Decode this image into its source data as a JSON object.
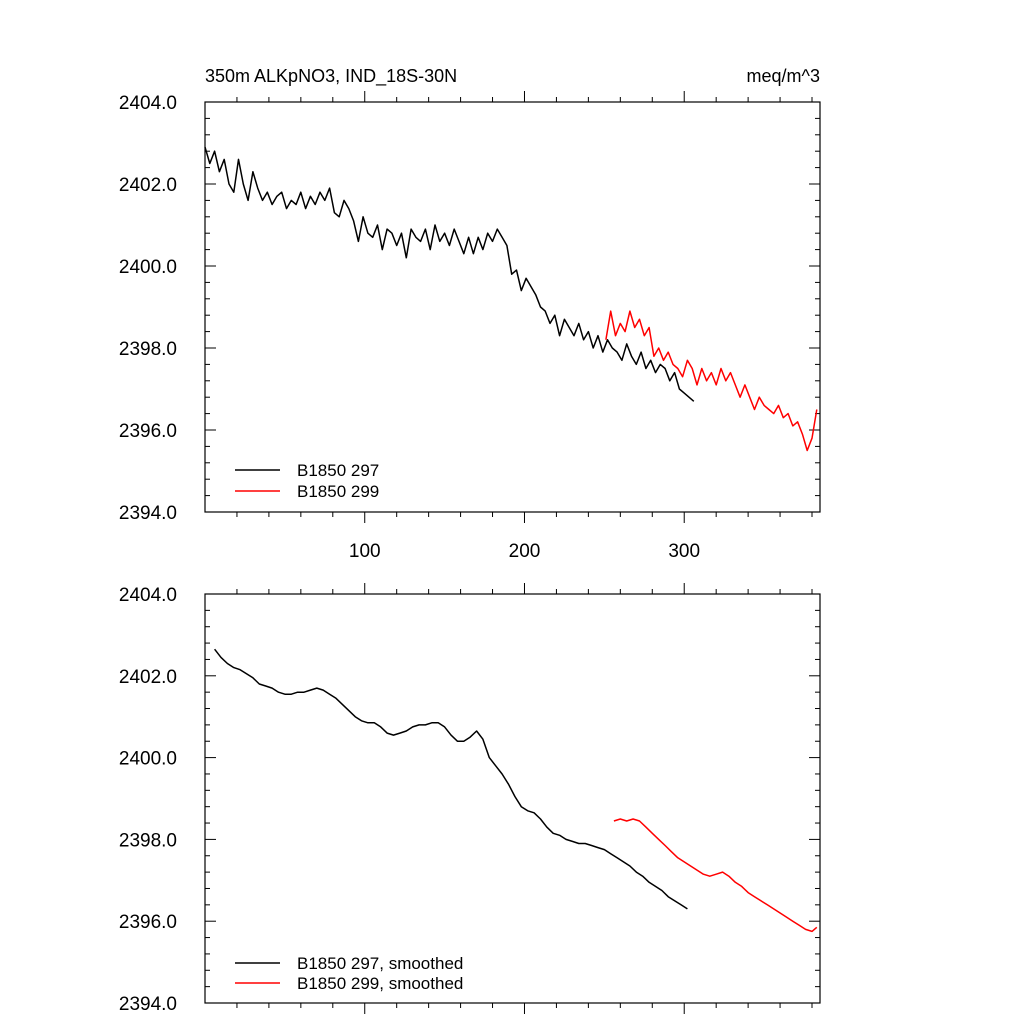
{
  "chart_data": [
    {
      "type": "line",
      "title": "350m ALKpNO3, IND_18S-30N",
      "units": "meq/m^3",
      "xlabel": "",
      "ylabel": "",
      "xlim": [
        0,
        385
      ],
      "ylim": [
        2394,
        2404
      ],
      "xticks": [
        100,
        200,
        300
      ],
      "xtick_labels": [
        "100",
        "200",
        "300"
      ],
      "yticks": [
        2394,
        2396,
        2398,
        2400,
        2402,
        2404
      ],
      "ytick_labels": [
        "2394.0",
        "2396.0",
        "2398.0",
        "2400.0",
        "2402.0",
        "2404.0"
      ],
      "legend": "bottom-left",
      "series": [
        {
          "name": "B1850 297",
          "color": "#000000",
          "x": [
            0,
            3,
            6,
            9,
            12,
            15,
            18,
            21,
            24,
            27,
            30,
            33,
            36,
            39,
            42,
            45,
            48,
            51,
            54,
            57,
            60,
            63,
            66,
            69,
            72,
            75,
            78,
            81,
            84,
            87,
            90,
            93,
            96,
            99,
            102,
            105,
            108,
            111,
            114,
            117,
            120,
            123,
            126,
            129,
            132,
            135,
            138,
            141,
            144,
            147,
            150,
            153,
            156,
            159,
            162,
            165,
            168,
            171,
            174,
            177,
            180,
            183,
            186,
            189,
            192,
            195,
            198,
            201,
            204,
            207,
            210,
            213,
            216,
            219,
            222,
            225,
            228,
            231,
            234,
            237,
            240,
            243,
            246,
            249,
            252,
            255,
            258,
            261,
            264,
            267,
            270,
            273,
            276,
            279,
            282,
            285,
            288,
            291,
            294,
            297,
            300,
            303,
            306
          ],
          "y": [
            2402.9,
            2402.5,
            2402.8,
            2402.3,
            2402.6,
            2402.0,
            2401.8,
            2402.6,
            2402.0,
            2401.6,
            2402.3,
            2401.9,
            2401.6,
            2401.8,
            2401.5,
            2401.7,
            2401.8,
            2401.4,
            2401.6,
            2401.5,
            2401.8,
            2401.4,
            2401.7,
            2401.5,
            2401.8,
            2401.6,
            2401.9,
            2401.3,
            2401.2,
            2401.6,
            2401.4,
            2401.1,
            2400.6,
            2401.2,
            2400.8,
            2400.7,
            2401.0,
            2400.4,
            2400.9,
            2400.8,
            2400.5,
            2400.8,
            2400.2,
            2400.9,
            2400.7,
            2400.6,
            2400.9,
            2400.4,
            2401.0,
            2400.6,
            2400.8,
            2400.5,
            2400.9,
            2400.6,
            2400.3,
            2400.7,
            2400.3,
            2400.7,
            2400.4,
            2400.8,
            2400.6,
            2400.9,
            2400.7,
            2400.5,
            2399.8,
            2399.9,
            2399.4,
            2399.7,
            2399.5,
            2399.3,
            2399.0,
            2398.9,
            2398.6,
            2398.8,
            2398.3,
            2398.7,
            2398.5,
            2398.3,
            2398.6,
            2398.2,
            2398.4,
            2398.0,
            2398.3,
            2397.9,
            2398.2,
            2398.0,
            2397.9,
            2397.7,
            2398.1,
            2397.8,
            2397.6,
            2397.9,
            2397.5,
            2397.7,
            2397.4,
            2397.6,
            2397.5,
            2397.2,
            2397.4,
            2397.0,
            2396.9,
            2396.8,
            2396.7
          ]
        },
        {
          "name": "B1850 299",
          "color": "#ff0000",
          "x": [
            251,
            254,
            257,
            260,
            263,
            266,
            269,
            272,
            275,
            278,
            281,
            284,
            287,
            290,
            293,
            296,
            299,
            302,
            305,
            308,
            311,
            314,
            317,
            320,
            323,
            326,
            329,
            332,
            335,
            338,
            341,
            344,
            347,
            350,
            353,
            356,
            359,
            362,
            365,
            368,
            371,
            374,
            377,
            380,
            383
          ],
          "y": [
            2398.2,
            2398.9,
            2398.3,
            2398.6,
            2398.4,
            2398.9,
            2398.5,
            2398.7,
            2398.3,
            2398.5,
            2397.8,
            2398.0,
            2397.7,
            2397.9,
            2397.6,
            2397.5,
            2397.3,
            2397.7,
            2397.5,
            2397.1,
            2397.5,
            2397.2,
            2397.4,
            2397.1,
            2397.5,
            2397.2,
            2397.4,
            2397.1,
            2396.8,
            2397.1,
            2396.8,
            2396.5,
            2396.8,
            2396.6,
            2396.5,
            2396.4,
            2396.6,
            2396.3,
            2396.4,
            2396.1,
            2396.2,
            2395.9,
            2395.5,
            2395.8,
            2396.5
          ]
        }
      ]
    },
    {
      "type": "line",
      "title": "",
      "xlabel": "",
      "ylabel": "",
      "xlim": [
        0,
        385
      ],
      "ylim": [
        2394,
        2404
      ],
      "xticks": [
        100,
        200,
        300
      ],
      "yticks": [
        2394,
        2396,
        2398,
        2400,
        2402,
        2404
      ],
      "ytick_labels": [
        "2394.0",
        "2396.0",
        "2398.0",
        "2400.0",
        "2402.0",
        "2404.0"
      ],
      "legend": "bottom-left",
      "series": [
        {
          "name": "B1850 297, smoothed",
          "color": "#000000",
          "x": [
            6,
            10,
            14,
            18,
            22,
            26,
            30,
            34,
            38,
            42,
            46,
            50,
            54,
            58,
            62,
            66,
            70,
            74,
            78,
            82,
            86,
            90,
            94,
            98,
            102,
            106,
            110,
            114,
            118,
            122,
            126,
            130,
            134,
            138,
            142,
            146,
            150,
            154,
            158,
            162,
            166,
            170,
            174,
            178,
            182,
            186,
            190,
            194,
            198,
            202,
            206,
            210,
            214,
            218,
            222,
            226,
            230,
            234,
            238,
            242,
            246,
            250,
            254,
            258,
            262,
            266,
            270,
            274,
            278,
            282,
            286,
            290,
            294,
            298,
            302
          ],
          "y": [
            2402.65,
            2402.45,
            2402.3,
            2402.2,
            2402.15,
            2402.05,
            2401.95,
            2401.8,
            2401.75,
            2401.7,
            2401.6,
            2401.55,
            2401.55,
            2401.6,
            2401.6,
            2401.65,
            2401.7,
            2401.65,
            2401.55,
            2401.45,
            2401.3,
            2401.15,
            2401.0,
            2400.9,
            2400.85,
            2400.85,
            2400.75,
            2400.6,
            2400.55,
            2400.6,
            2400.65,
            2400.75,
            2400.8,
            2400.8,
            2400.85,
            2400.85,
            2400.75,
            2400.55,
            2400.4,
            2400.4,
            2400.5,
            2400.65,
            2400.45,
            2400.0,
            2399.8,
            2399.6,
            2399.35,
            2399.05,
            2398.8,
            2398.7,
            2398.65,
            2398.5,
            2398.3,
            2398.15,
            2398.1,
            2398.0,
            2397.95,
            2397.9,
            2397.9,
            2397.85,
            2397.8,
            2397.75,
            2397.65,
            2397.55,
            2397.45,
            2397.35,
            2397.2,
            2397.1,
            2396.95,
            2396.85,
            2396.75,
            2396.6,
            2396.5,
            2396.4,
            2396.3
          ]
        },
        {
          "name": "B1850 299, smoothed",
          "color": "#ff0000",
          "x": [
            256,
            260,
            264,
            268,
            272,
            276,
            280,
            284,
            288,
            292,
            296,
            300,
            304,
            308,
            312,
            316,
            320,
            324,
            328,
            332,
            336,
            340,
            344,
            348,
            352,
            356,
            360,
            364,
            368,
            372,
            376,
            380,
            383
          ],
          "y": [
            2398.45,
            2398.5,
            2398.45,
            2398.5,
            2398.45,
            2398.3,
            2398.15,
            2398.0,
            2397.85,
            2397.7,
            2397.55,
            2397.45,
            2397.35,
            2397.25,
            2397.15,
            2397.1,
            2397.15,
            2397.2,
            2397.1,
            2396.95,
            2396.85,
            2396.7,
            2396.6,
            2396.5,
            2396.4,
            2396.3,
            2396.2,
            2396.1,
            2396.0,
            2395.9,
            2395.8,
            2395.75,
            2395.85
          ]
        }
      ]
    }
  ]
}
